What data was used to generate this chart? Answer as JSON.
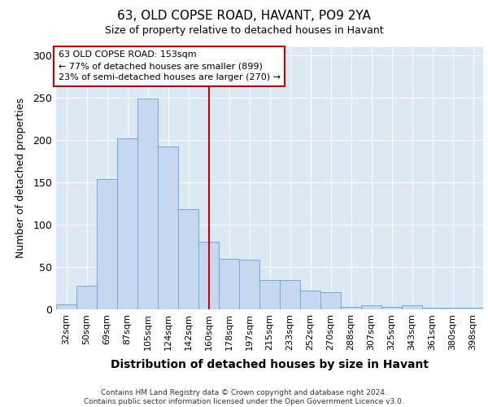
{
  "title_line1": "63, OLD COPSE ROAD, HAVANT, PO9 2YA",
  "title_line2": "Size of property relative to detached houses in Havant",
  "xlabel": "Distribution of detached houses by size in Havant",
  "ylabel": "Number of detached properties",
  "footer_line1": "Contains HM Land Registry data © Crown copyright and database right 2024.",
  "footer_line2": "Contains public sector information licensed under the Open Government Licence v3.0.",
  "annotation_line1": "63 OLD COPSE ROAD: 153sqm",
  "annotation_line2": "← 77% of detached houses are smaller (899)",
  "annotation_line3": "23% of semi-detached houses are larger (270) →",
  "bar_color": "#c5d8f0",
  "bar_edge_color": "#6fa8d6",
  "vline_color": "#cc0000",
  "categories": [
    "32sqm",
    "50sqm",
    "69sqm",
    "87sqm",
    "105sqm",
    "124sqm",
    "142sqm",
    "160sqm",
    "178sqm",
    "197sqm",
    "215sqm",
    "233sqm",
    "252sqm",
    "270sqm",
    "288sqm",
    "307sqm",
    "325sqm",
    "343sqm",
    "361sqm",
    "380sqm",
    "398sqm"
  ],
  "values": [
    6,
    28,
    154,
    202,
    249,
    192,
    118,
    80,
    60,
    59,
    35,
    35,
    22,
    20,
    3,
    5,
    3,
    5,
    2,
    2,
    2
  ],
  "ylim": [
    0,
    310
  ],
  "yticks": [
    0,
    50,
    100,
    150,
    200,
    250,
    300
  ],
  "vline_x": 7.0,
  "bg_color": "#dce9f5",
  "grid_color": "white",
  "fig_width": 6.0,
  "fig_height": 5.0
}
